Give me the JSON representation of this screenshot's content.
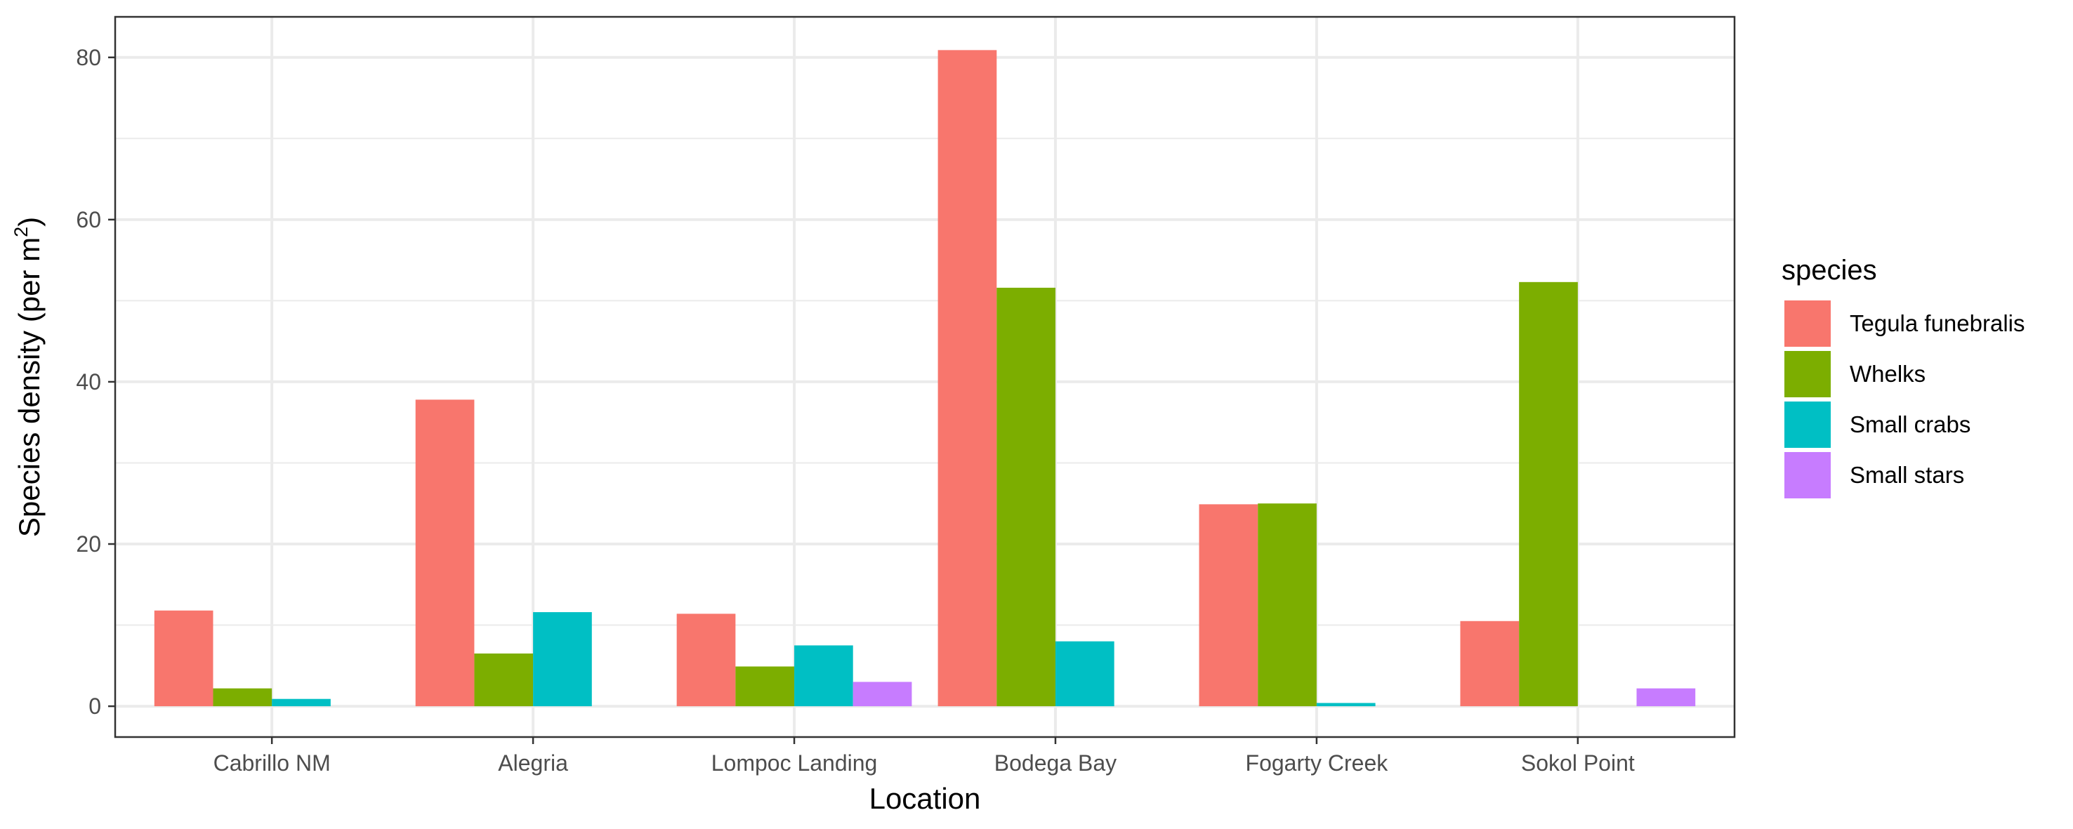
{
  "chart_data": {
    "type": "bar",
    "xlabel": "Location",
    "ylabel_main": "Species density (per m",
    "ylabel_superscript": "2",
    "ylabel_close": ")",
    "categories": [
      "Cabrillo NM",
      "Alegria",
      "Lompoc Landing",
      "Bodega Bay",
      "Fogarty Creek",
      "Sokol Point"
    ],
    "series": [
      {
        "name": "Tegula funebralis",
        "color": "#F8766D",
        "values": [
          11.8,
          37.8,
          11.4,
          80.9,
          24.9,
          10.5
        ]
      },
      {
        "name": "Whelks",
        "color": "#7CAE00",
        "values": [
          2.2,
          6.5,
          4.9,
          51.6,
          25.0,
          52.3
        ]
      },
      {
        "name": "Small crabs",
        "color": "#00BFC4",
        "values": [
          0.9,
          11.6,
          7.5,
          8.0,
          0.4,
          null
        ]
      },
      {
        "name": "Small stars",
        "color": "#C77CFF",
        "values": [
          null,
          null,
          3.0,
          null,
          null,
          2.2
        ]
      }
    ],
    "ylim": [
      -3.8,
      85
    ],
    "y_ticks": [
      0,
      20,
      40,
      60,
      80
    ],
    "y_tick_labels": [
      "0",
      "20",
      "40",
      "60",
      "80"
    ],
    "y_minor_ticks": [
      10,
      30,
      50,
      70
    ],
    "legend_title": "species",
    "legend_position": "right",
    "grid": true,
    "theme": "bw"
  }
}
